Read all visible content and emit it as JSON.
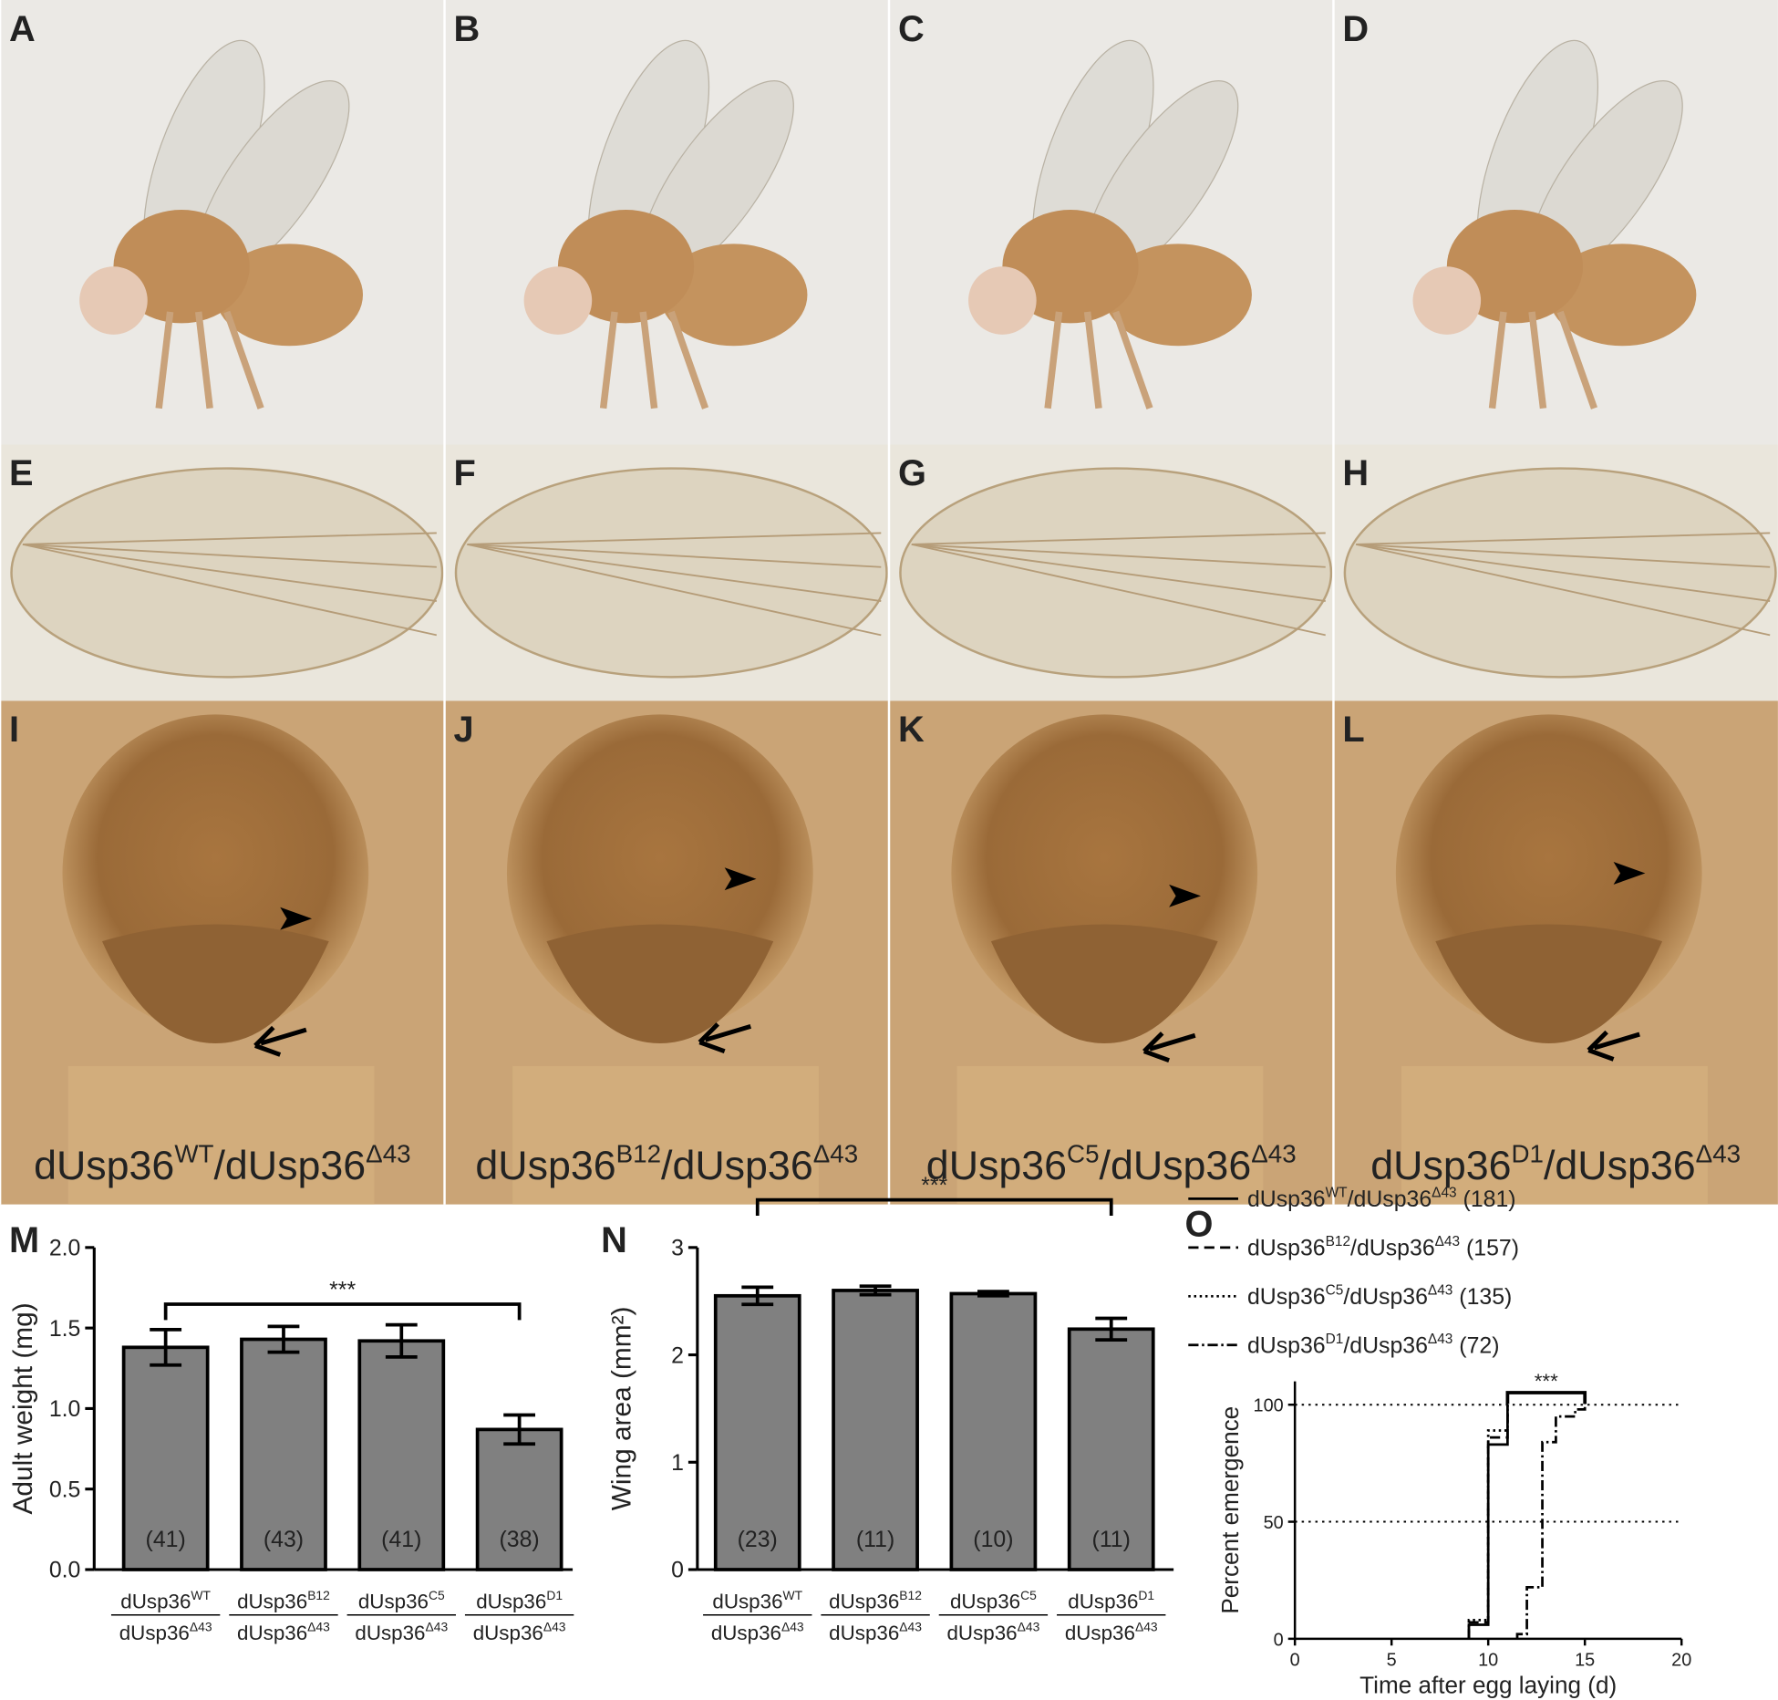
{
  "photo_panels": {
    "letters": [
      "A",
      "B",
      "C",
      "D",
      "E",
      "F",
      "G",
      "H",
      "I",
      "J",
      "K",
      "L"
    ],
    "genotype_labels": [
      {
        "a": "dUsp36",
        "a_sup": "WT",
        "b": "/dUsp36",
        "b_sup": "Δ43"
      },
      {
        "a": "dUsp36",
        "a_sup": "B12",
        "b": "/dUsp36",
        "b_sup": "Δ43"
      },
      {
        "a": "dUsp36",
        "a_sup": "C5",
        "b": "/dUsp36",
        "b_sup": "Δ43"
      },
      {
        "a": "dUsp36",
        "a_sup": "D1",
        "b": "/dUsp36",
        "b_sup": "Δ43"
      }
    ]
  },
  "chart_data": [
    {
      "type": "bar",
      "panel": "M",
      "y_label": "Adult weight (mg)",
      "categories": [
        {
          "top": {
            "a": "dUsp36",
            "a_sup": "WT"
          },
          "bottom": {
            "a": "dUsp36",
            "a_sup": "Δ43"
          }
        },
        {
          "top": {
            "a": "dUsp36",
            "a_sup": "B12"
          },
          "bottom": {
            "a": "dUsp36",
            "a_sup": "Δ43"
          }
        },
        {
          "top": {
            "a": "dUsp36",
            "a_sup": "C5"
          },
          "bottom": {
            "a": "dUsp36",
            "a_sup": "Δ43"
          }
        },
        {
          "top": {
            "a": "dUsp36",
            "a_sup": "D1"
          },
          "bottom": {
            "a": "dUsp36",
            "a_sup": "Δ43"
          }
        }
      ],
      "values": [
        1.38,
        1.43,
        1.42,
        0.87
      ],
      "errors": [
        0.11,
        0.08,
        0.1,
        0.09
      ],
      "n_labels": [
        "(41)",
        "(43)",
        "(41)",
        "(38)"
      ],
      "color": "#808080",
      "ylim": [
        0,
        2.0
      ],
      "yticks": [
        {
          "value": 0,
          "label": "0.0"
        },
        {
          "value": 0.5,
          "label": "0.5"
        },
        {
          "value": 1,
          "label": "1.0"
        },
        {
          "value": 1.5,
          "label": "1.5"
        },
        {
          "value": 2,
          "label": "2.0"
        }
      ],
      "significance": "***"
    },
    {
      "type": "bar",
      "panel": "N",
      "y_label": "Wing area (mm²)",
      "categories": [
        {
          "top": {
            "a": "dUsp36",
            "a_sup": "WT"
          },
          "bottom": {
            "a": "dUsp36",
            "a_sup": "Δ43"
          }
        },
        {
          "top": {
            "a": "dUsp36",
            "a_sup": "B12"
          },
          "bottom": {
            "a": "dUsp36",
            "a_sup": "Δ43"
          }
        },
        {
          "top": {
            "a": "dUsp36",
            "a_sup": "C5"
          },
          "bottom": {
            "a": "dUsp36",
            "a_sup": "Δ43"
          }
        },
        {
          "top": {
            "a": "dUsp36",
            "a_sup": "D1"
          },
          "bottom": {
            "a": "dUsp36",
            "a_sup": "Δ43"
          }
        }
      ],
      "values": [
        2.55,
        2.6,
        2.57,
        2.24
      ],
      "errors": [
        0.08,
        0.04,
        0.02,
        0.1
      ],
      "n_labels": [
        "(23)",
        "(11)",
        "(10)",
        "(11)"
      ],
      "color": "#808080",
      "ylim": [
        0,
        3
      ],
      "yticks": [
        0,
        1,
        2,
        3
      ],
      "significance": "***"
    },
    {
      "type": "line",
      "step": true,
      "panel": "O",
      "x_label": "Time after egg laying (d)",
      "y_label": "Percent emergence",
      "xlim": [
        0,
        20
      ],
      "xticks": [
        0,
        5,
        10,
        15,
        20
      ],
      "ylim": [
        0,
        110
      ],
      "yticks": [
        0,
        50,
        100
      ],
      "reference_lines": [
        50,
        100
      ],
      "significance": "***",
      "bracket_x": [
        11,
        15
      ],
      "series": [
        {
          "name": {
            "a": "dUsp36",
            "a_sup": "WT",
            "b": "/dUsp36",
            "b_sup": "Δ43"
          },
          "n_label": "(181)",
          "color": "#000000",
          "dash": "solid",
          "x": [
            9,
            10,
            11
          ],
          "values": [
            6,
            83,
            100
          ]
        },
        {
          "name": {
            "a": "dUsp36",
            "a_sup": "B12",
            "b": "/dUsp36",
            "b_sup": "Δ43"
          },
          "n_label": "(157)",
          "color": "#000000",
          "dash": "dashed",
          "x": [
            9,
            10,
            11
          ],
          "values": [
            7,
            86,
            100
          ]
        },
        {
          "name": {
            "a": "dUsp36",
            "a_sup": "C5",
            "b": "/dUsp36",
            "b_sup": "Δ43"
          },
          "n_label": "(135)",
          "color": "#000000",
          "dash": "dotted",
          "x": [
            9,
            10,
            11
          ],
          "values": [
            8,
            89,
            100
          ]
        },
        {
          "name": {
            "a": "dUsp36",
            "a_sup": "D1",
            "b": "/dUsp36",
            "b_sup": "Δ43"
          },
          "n_label": "(72)",
          "color": "#000000",
          "dash": "dashdot",
          "x": [
            11.5,
            12,
            12.8,
            13.5,
            14.5,
            15
          ],
          "values": [
            2,
            22,
            84,
            95,
            98,
            100
          ]
        }
      ]
    }
  ]
}
